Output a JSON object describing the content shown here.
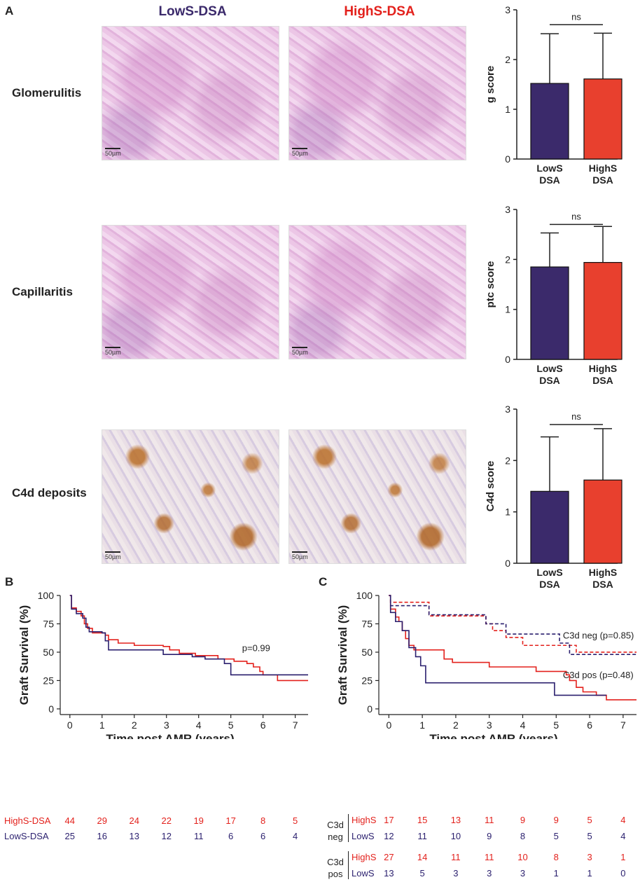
{
  "panel_letters": {
    "a": "A",
    "b": "B",
    "c": "C"
  },
  "panelA": {
    "col_headers": {
      "lows": "LowS-DSA",
      "highs": "HighS-DSA"
    },
    "row_labels": [
      "Glomerulitis",
      "Capillaritis",
      "C4d deposits"
    ],
    "scale_label": "50µm"
  },
  "colors": {
    "lows": "#3b2a6b",
    "highs": "#e8402e",
    "curve_red": "#e3211c",
    "curve_blue": "#2a1f6e"
  },
  "chart_data": [
    {
      "type": "bar",
      "ylabel": "g score",
      "categories": [
        "LowS DSA",
        "HighS DSA"
      ],
      "values": [
        1.52,
        1.61
      ],
      "errors": [
        1.0,
        0.92
      ],
      "ylim": [
        0,
        3
      ],
      "yticks": [
        "0",
        "1",
        "2",
        "3"
      ],
      "annotation": "ns"
    },
    {
      "type": "bar",
      "ylabel": "ptc score",
      "categories": [
        "LowS DSA",
        "HighS DSA"
      ],
      "values": [
        1.85,
        1.94
      ],
      "errors": [
        0.68,
        0.72
      ],
      "ylim": [
        0,
        3
      ],
      "yticks": [
        "0",
        "1",
        "2",
        "3"
      ],
      "annotation": "ns"
    },
    {
      "type": "bar",
      "ylabel": "C4d score",
      "categories": [
        "LowS DSA",
        "HighS DSA"
      ],
      "values": [
        1.4,
        1.62
      ],
      "errors": [
        1.06,
        1.0
      ],
      "ylim": [
        0,
        3
      ],
      "yticks": [
        "0",
        "1",
        "2",
        "3"
      ],
      "annotation": "ns"
    },
    {
      "type": "line",
      "ylabel": "Graft Survival (%)",
      "xlabel": "Time post AMR (years)",
      "xlim": [
        -0.3,
        7.4
      ],
      "ylim": [
        -5,
        100
      ],
      "xticks": [
        "0",
        "1",
        "2",
        "3",
        "4",
        "5",
        "6",
        "7"
      ],
      "yticks": [
        "0",
        "25",
        "50",
        "75",
        "100"
      ],
      "annotation": "p=0.99",
      "series": [
        {
          "name": "HighS-DSA",
          "points": [
            [
              0,
              100
            ],
            [
              0.05,
              89
            ],
            [
              0.2,
              86
            ],
            [
              0.35,
              82
            ],
            [
              0.45,
              75
            ],
            [
              0.55,
              71
            ],
            [
              0.7,
              67
            ],
            [
              1.1,
              65
            ],
            [
              1.2,
              61
            ],
            [
              1.5,
              58
            ],
            [
              2.0,
              56
            ],
            [
              2.9,
              55
            ],
            [
              3.1,
              52
            ],
            [
              3.4,
              49
            ],
            [
              3.9,
              47
            ],
            [
              4.6,
              44
            ],
            [
              5.1,
              42
            ],
            [
              5.5,
              40
            ],
            [
              5.7,
              37
            ],
            [
              5.9,
              33
            ],
            [
              6.0,
              30
            ],
            [
              6.4,
              30
            ],
            [
              6.45,
              25
            ],
            [
              7.4,
              25
            ]
          ]
        },
        {
          "name": "LowS-DSA",
          "points": [
            [
              0,
              100
            ],
            [
              0.05,
              88
            ],
            [
              0.2,
              84
            ],
            [
              0.4,
              80
            ],
            [
              0.5,
              72
            ],
            [
              0.6,
              68
            ],
            [
              1.0,
              67
            ],
            [
              1.1,
              60
            ],
            [
              1.2,
              52
            ],
            [
              2.0,
              52
            ],
            [
              2.9,
              48
            ],
            [
              3.8,
              46
            ],
            [
              4.2,
              44
            ],
            [
              4.8,
              40
            ],
            [
              5.0,
              30
            ],
            [
              7.4,
              30
            ]
          ]
        }
      ]
    },
    {
      "type": "line",
      "ylabel": "Graft Survival (%)",
      "xlabel": "Time post AMR (years)",
      "xlim": [
        -0.3,
        7.4
      ],
      "ylim": [
        -5,
        100
      ],
      "xticks": [
        "0",
        "1",
        "2",
        "3",
        "4",
        "5",
        "6",
        "7"
      ],
      "yticks": [
        "0",
        "25",
        "50",
        "75",
        "100"
      ],
      "annotations": [
        "C3d neg (p=0.85)",
        "C3d pos (p=0.48)"
      ],
      "series": [
        {
          "name": "C3d neg HighS",
          "points": [
            [
              0,
              100
            ],
            [
              0.05,
              94
            ],
            [
              1.1,
              94
            ],
            [
              1.2,
              82
            ],
            [
              2.2,
              82
            ],
            [
              2.9,
              75
            ],
            [
              3.1,
              69
            ],
            [
              3.5,
              63
            ],
            [
              4.0,
              56
            ],
            [
              5.1,
              56
            ],
            [
              5.6,
              50
            ],
            [
              7.4,
              50
            ]
          ]
        },
        {
          "name": "C3d neg LowS",
          "points": [
            [
              0,
              100
            ],
            [
              0.05,
              91
            ],
            [
              0.9,
              91
            ],
            [
              1.2,
              83
            ],
            [
              2.8,
              83
            ],
            [
              2.9,
              75
            ],
            [
              3.5,
              66
            ],
            [
              4.9,
              66
            ],
            [
              5.1,
              58
            ],
            [
              5.4,
              48
            ],
            [
              7.4,
              48
            ]
          ]
        },
        {
          "name": "C3d pos HighS",
          "points": [
            [
              0,
              100
            ],
            [
              0.05,
              88
            ],
            [
              0.2,
              81
            ],
            [
              0.3,
              77
            ],
            [
              0.4,
              69
            ],
            [
              0.5,
              62
            ],
            [
              0.6,
              56
            ],
            [
              0.75,
              52
            ],
            [
              1.5,
              52
            ],
            [
              1.65,
              44
            ],
            [
              1.9,
              41
            ],
            [
              3.0,
              37
            ],
            [
              4.4,
              33
            ],
            [
              5.3,
              30
            ],
            [
              5.4,
              25
            ],
            [
              5.6,
              19
            ],
            [
              5.8,
              15
            ],
            [
              6.2,
              12
            ],
            [
              6.5,
              8
            ],
            [
              7.4,
              8
            ]
          ]
        },
        {
          "name": "C3d pos LowS",
          "points": [
            [
              0,
              100
            ],
            [
              0.05,
              85
            ],
            [
              0.2,
              77
            ],
            [
              0.4,
              69
            ],
            [
              0.6,
              54
            ],
            [
              0.8,
              46
            ],
            [
              0.95,
              38
            ],
            [
              1.1,
              23
            ],
            [
              4.8,
              23
            ],
            [
              4.95,
              12
            ],
            [
              6.1,
              12
            ],
            [
              6.5,
              12
            ]
          ]
        }
      ]
    }
  ],
  "risk_tables": {
    "B": {
      "rows": [
        {
          "label": "HighS-DSA",
          "values": [
            "44",
            "29",
            "24",
            "22",
            "19",
            "17",
            "8",
            "5"
          ]
        },
        {
          "label": "LowS-DSA",
          "values": [
            "25",
            "16",
            "13",
            "12",
            "11",
            "6",
            "6",
            "4"
          ]
        }
      ]
    },
    "C": {
      "groups": [
        {
          "label_line1": "C3d",
          "label_line2": "neg",
          "rows": [
            {
              "label": "HighS",
              "values": [
                "17",
                "15",
                "13",
                "11",
                "9",
                "9",
                "5",
                "4"
              ]
            },
            {
              "label": "LowS",
              "values": [
                "12",
                "11",
                "10",
                "9",
                "8",
                "5",
                "5",
                "4"
              ]
            }
          ]
        },
        {
          "label_line1": "C3d",
          "label_line2": "pos",
          "rows": [
            {
              "label": "HighS",
              "values": [
                "27",
                "14",
                "11",
                "11",
                "10",
                "8",
                "3",
                "1"
              ]
            },
            {
              "label": "LowS",
              "values": [
                "13",
                "5",
                "3",
                "3",
                "3",
                "1",
                "1",
                "0"
              ]
            }
          ]
        }
      ]
    }
  }
}
